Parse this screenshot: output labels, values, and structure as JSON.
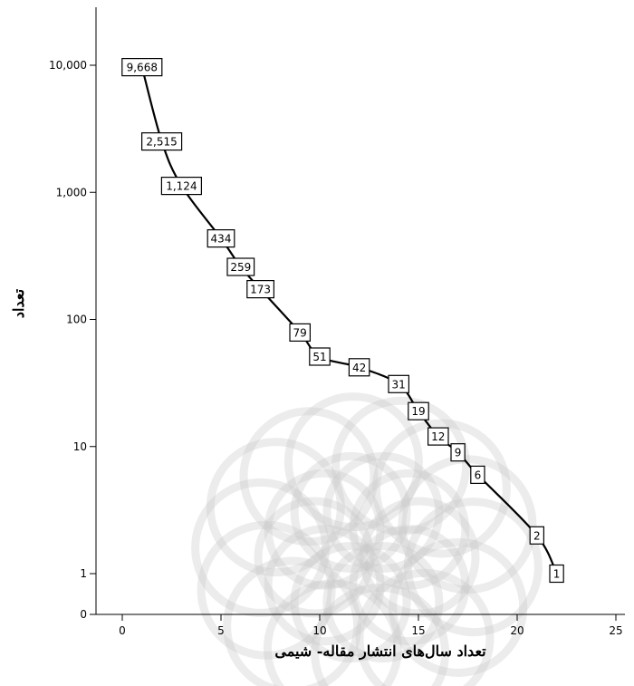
{
  "chart_data": {
    "type": "line",
    "xlabel": "تعداد سال‌های انتشار مقاله- شیمی",
    "ylabel": "تعداد",
    "x_scale": "linear",
    "y_scale": "log",
    "xlim": [
      -1,
      25
    ],
    "x_ticks": [
      0,
      5,
      10,
      15,
      20,
      25
    ],
    "x_tick_labels": [
      "0",
      "5",
      "10",
      "15",
      "20",
      "25"
    ],
    "y_ticks": [
      0,
      1,
      10,
      100,
      1000,
      10000
    ],
    "y_tick_labels": [
      "0",
      "1",
      "10",
      "100",
      "1,000",
      "10,000"
    ],
    "grid": false,
    "series": [
      {
        "x": [
          1,
          2,
          3,
          5,
          6,
          7,
          9,
          10,
          12,
          14,
          15,
          16,
          17,
          18,
          21,
          22
        ],
        "values": [
          9668,
          2515,
          1124,
          434,
          259,
          173,
          79,
          51,
          42,
          31,
          19,
          12,
          9,
          6,
          2,
          1
        ],
        "labels": [
          "9,668",
          "2,515",
          "1,124",
          "434",
          "259",
          "173",
          "79",
          "51",
          "42",
          "31",
          "19",
          "12",
          "9",
          "6",
          "2",
          "1"
        ]
      }
    ],
    "line_color": "#000000"
  }
}
